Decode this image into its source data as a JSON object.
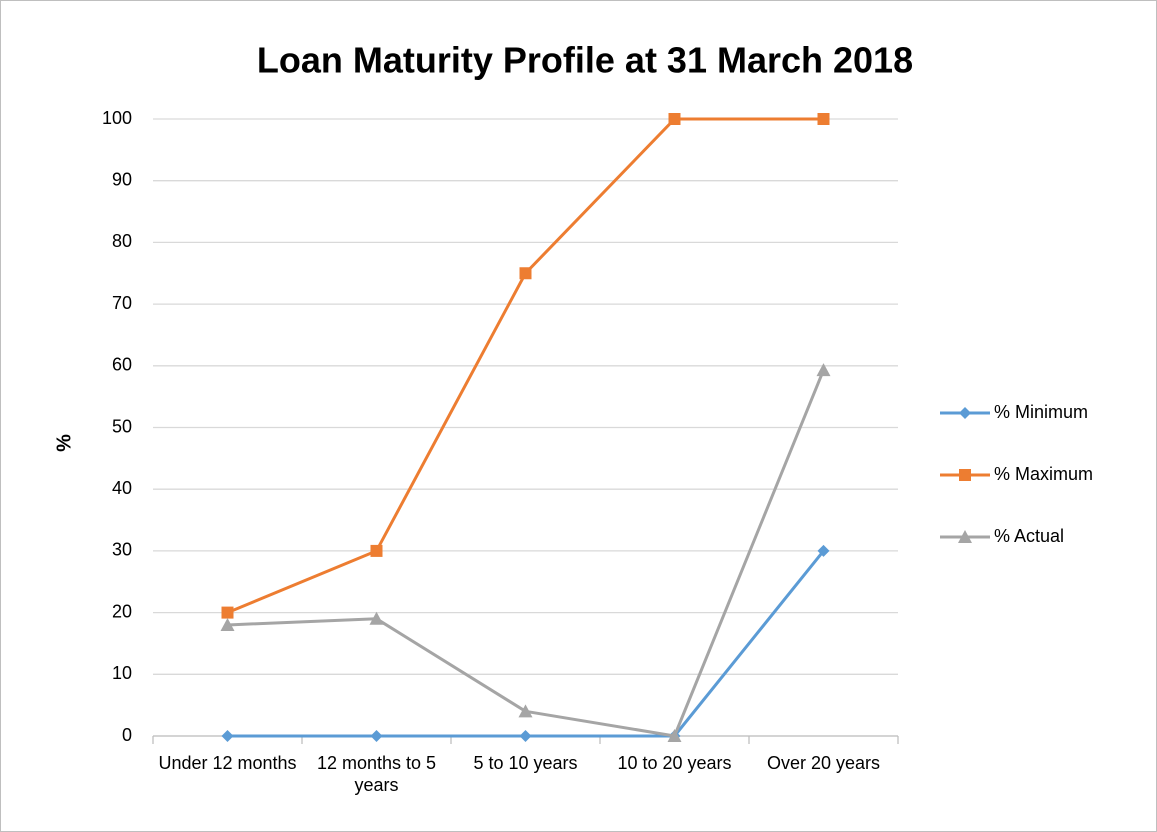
{
  "chart_data": {
    "type": "line",
    "title": "Loan Maturity Profile at 31 March 2018",
    "y_label": "%",
    "categories": [
      "Under 12 months",
      "12 months to 5 years",
      "5 to 10 years",
      "10 to 20 years",
      "Over 20 years"
    ],
    "series": [
      {
        "name": "% Minimum",
        "color": "#5b9bd5",
        "marker": "diamond",
        "values": [
          0,
          0,
          0,
          0,
          30
        ]
      },
      {
        "name": "% Maximum",
        "color": "#ed7d31",
        "marker": "square",
        "values": [
          20,
          30,
          75,
          100,
          100
        ]
      },
      {
        "name": "% Actual",
        "color": "#a5a5a5",
        "marker": "triangle",
        "values": [
          18,
          19,
          4,
          0,
          59.3
        ]
      }
    ],
    "ylim": [
      0,
      100
    ],
    "yticks": [
      0,
      10,
      20,
      30,
      40,
      50,
      60,
      70,
      80,
      90,
      100
    ],
    "grid": true,
    "legend": "right"
  }
}
